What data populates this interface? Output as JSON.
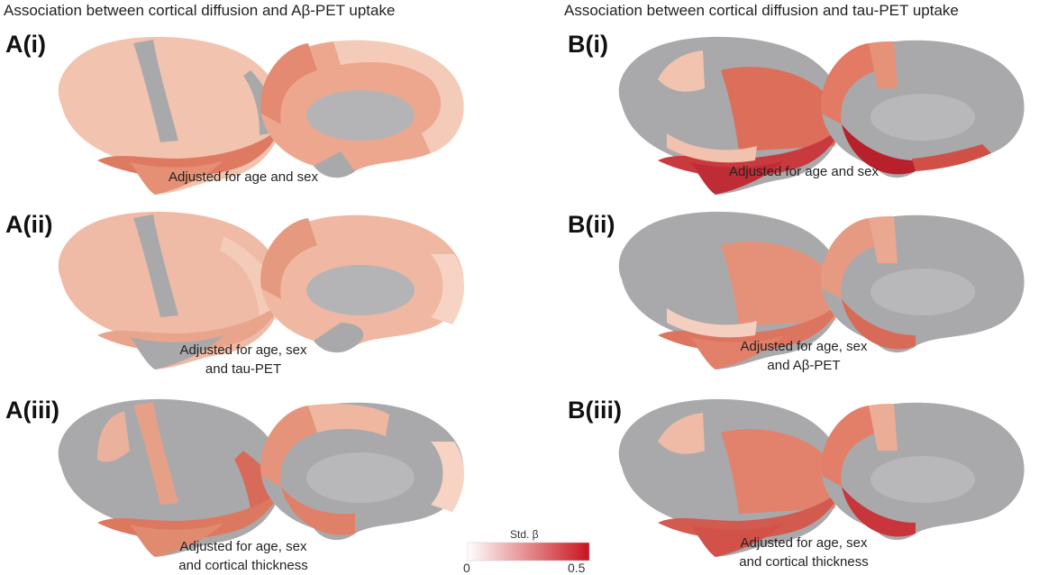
{
  "titles": {
    "left": "Association between cortical diffusion and Aβ-PET uptake",
    "right": "Association between cortical diffusion and tau-PET uptake"
  },
  "panels": [
    {
      "label": "A(i)",
      "caption_lines": [
        "Adjusted for age and sex"
      ]
    },
    {
      "label": "A(ii)",
      "caption_lines": [
        "Adjusted for age, sex",
        "and tau-PET"
      ]
    },
    {
      "label": "A(iii)",
      "caption_lines": [
        "Adjusted for age, sex",
        "and cortical thickness"
      ]
    },
    {
      "label": "B(i)",
      "caption_lines": [
        "Adjusted for age and sex"
      ]
    },
    {
      "label": "B(ii)",
      "caption_lines": [
        "Adjusted for age, sex",
        "and Aβ-PET"
      ]
    },
    {
      "label": "B(iii)",
      "caption_lines": [
        "Adjusted for age, sex",
        "and cortical thickness"
      ]
    }
  ],
  "colorbar": {
    "title": "Std. β",
    "min_label": "0",
    "max_label": "0.5",
    "color_low": "#ffffff",
    "color_high": "#c8141e"
  },
  "colors": {
    "cortex_gray": "#a9a9ab",
    "pale": "#f4cbb8",
    "light": "#eda78e",
    "medium": "#e27e66",
    "strong": "#cf4a42",
    "deep": "#b81e2a"
  }
}
